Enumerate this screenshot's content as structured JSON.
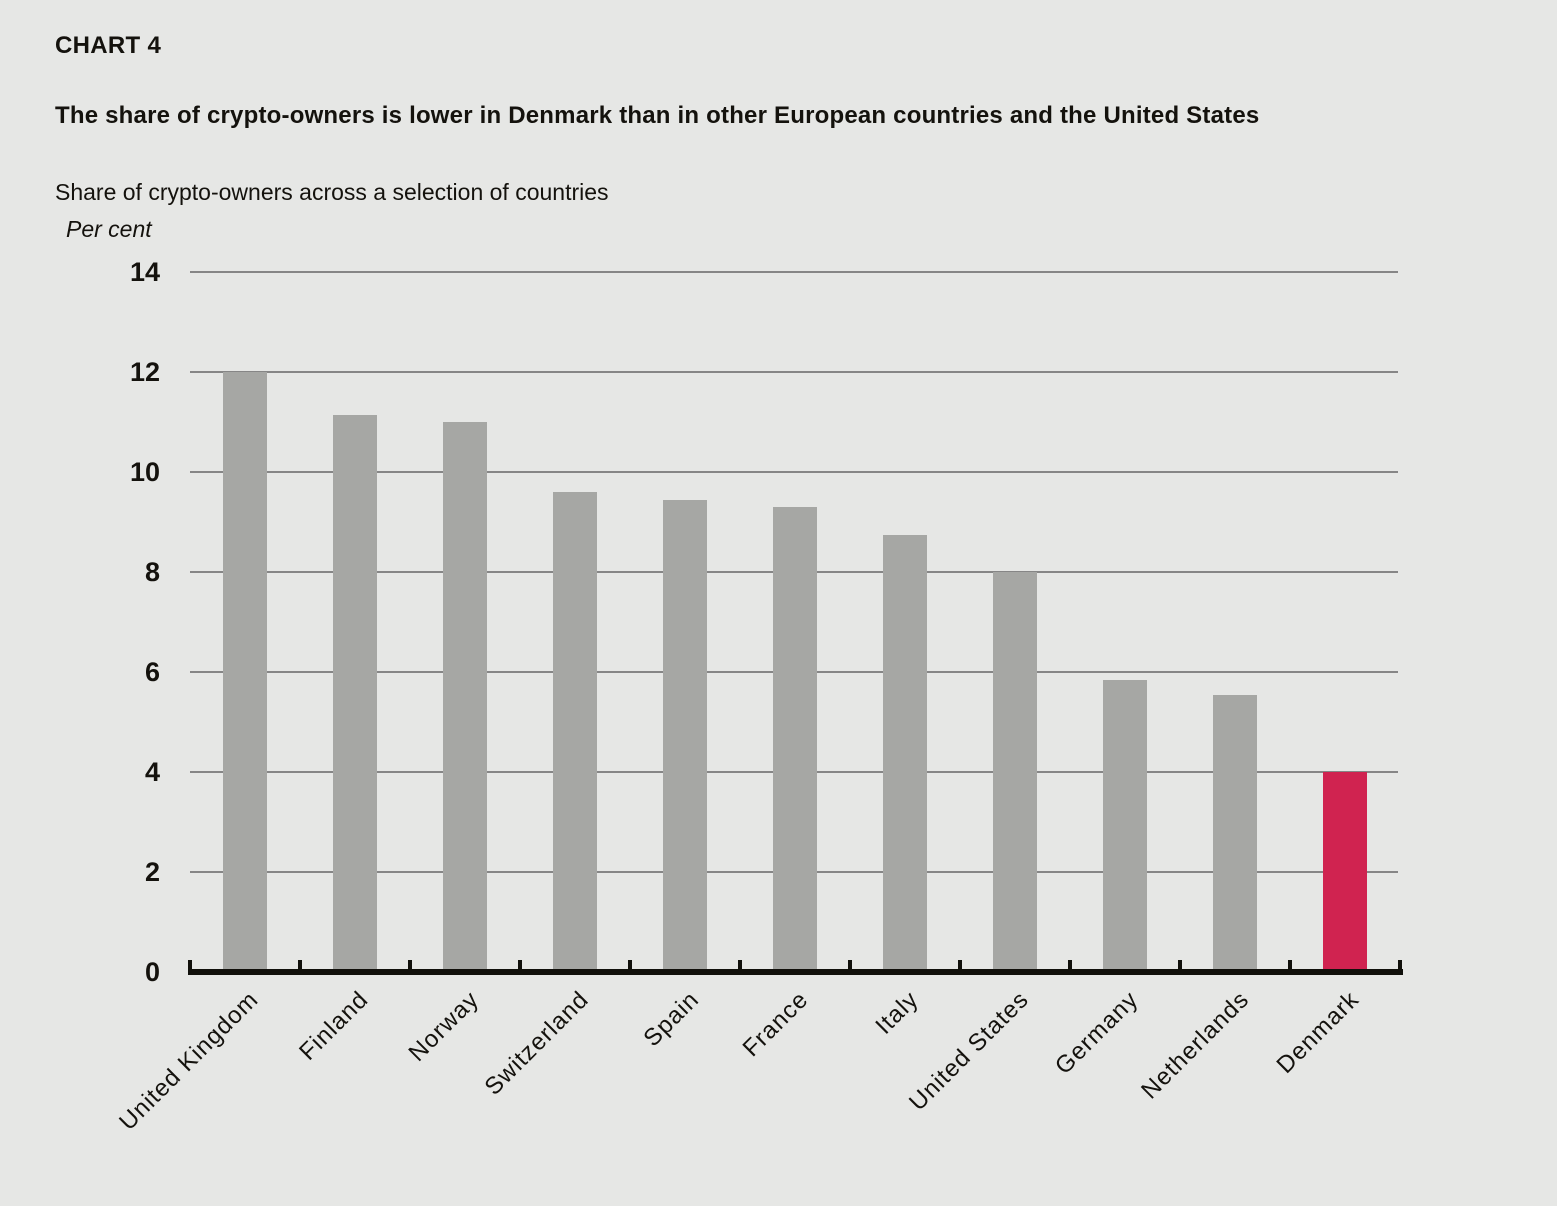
{
  "chart_data": {
    "type": "bar",
    "figure_label": "CHART 4",
    "title": "The share of crypto-owners is lower in Denmark than in other European countries and the United States",
    "subtitle": "Share of crypto-owners across a selection of countries",
    "ylabel": "Per cent",
    "xlabel": "",
    "categories": [
      "United Kingdom",
      "Finland",
      "Norway",
      "Switzerland",
      "Spain",
      "France",
      "Italy",
      "United States",
      "Germany",
      "Netherlands",
      "Denmark"
    ],
    "values": [
      12.0,
      11.15,
      11.0,
      9.6,
      9.45,
      9.3,
      8.75,
      8.0,
      5.85,
      5.55,
      4.0
    ],
    "highlight_category": "Denmark",
    "ylim": [
      0,
      14
    ],
    "yticks": [
      0,
      2,
      4,
      6,
      8,
      10,
      12,
      14
    ],
    "grid": true,
    "legend_position": "none",
    "colors": {
      "bar": "#a6a7a4",
      "highlight": "#d02350",
      "background": "#e6e7e5",
      "gridline": "#868686",
      "axis": "#11100b",
      "text": "#14120d"
    }
  }
}
